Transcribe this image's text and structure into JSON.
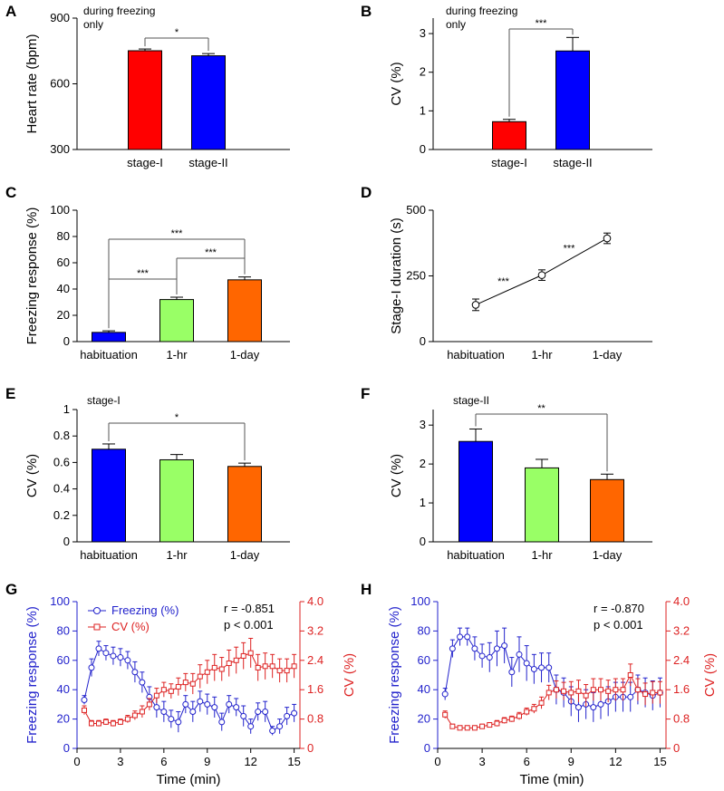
{
  "figure": {
    "panel_letters": [
      "A",
      "B",
      "C",
      "D",
      "E",
      "F",
      "G",
      "H"
    ]
  },
  "colors": {
    "red": "#ff0000",
    "blue": "#0000ff",
    "green": "#99ff66",
    "orange": "#ff6600",
    "axis": "#000000",
    "freezing_series": "#2222cc",
    "cv_series": "#dd2222"
  },
  "chart_data": [
    {
      "panel": "A",
      "type": "bar",
      "title": "",
      "annotation": "during freezing\nonly",
      "categories": [
        "stage-I",
        "stage-II"
      ],
      "values": [
        751,
        728
      ],
      "errors": [
        8,
        10
      ],
      "bar_colors": [
        "red",
        "blue"
      ],
      "xlabel": "",
      "ylabel": "Heart rate (bpm)",
      "ylim": [
        300,
        900
      ],
      "yticks": [
        300,
        600,
        900
      ],
      "significance": [
        {
          "from": 0,
          "to": 1,
          "label": "*"
        }
      ]
    },
    {
      "panel": "B",
      "type": "bar",
      "title": "",
      "annotation": "during freezing\nonly",
      "categories": [
        "stage-I",
        "stage-II"
      ],
      "values": [
        0.72,
        2.55
      ],
      "errors": [
        0.06,
        0.35
      ],
      "bar_colors": [
        "red",
        "blue"
      ],
      "xlabel": "",
      "ylabel": "CV (%)",
      "ylim": [
        0,
        3.4
      ],
      "yticks": [
        0,
        1,
        2,
        3
      ],
      "significance": [
        {
          "from": 0,
          "to": 1,
          "label": "***"
        }
      ]
    },
    {
      "panel": "C",
      "type": "bar",
      "title": "",
      "annotation": "",
      "categories": [
        "habituation",
        "1-hr",
        "1-day"
      ],
      "values": [
        7,
        32,
        47
      ],
      "errors": [
        1.2,
        1.8,
        2.2
      ],
      "bar_colors": [
        "blue",
        "green",
        "orange"
      ],
      "xlabel": "",
      "ylabel": "Freezing response (%)",
      "ylim": [
        0,
        100
      ],
      "yticks": [
        0,
        20,
        40,
        60,
        80,
        100
      ],
      "significance": [
        {
          "from": 0,
          "to": 1,
          "label": "***"
        },
        {
          "from": 1,
          "to": 2,
          "label": "***"
        },
        {
          "from": 0,
          "to": 2,
          "label": "***"
        }
      ]
    },
    {
      "panel": "D",
      "type": "line",
      "title": "",
      "annotation": "",
      "categories": [
        "habituation",
        "1-hr",
        "1-day"
      ],
      "values": [
        140,
        253,
        393
      ],
      "errors": [
        22,
        20,
        20
      ],
      "xlabel": "",
      "ylabel": "Stage-I duration (s)",
      "ylim": [
        0,
        500
      ],
      "yticks": [
        0,
        250,
        500
      ],
      "segment_labels": [
        "***",
        "***"
      ]
    },
    {
      "panel": "E",
      "type": "bar",
      "title": "",
      "annotation": "stage-I",
      "categories": [
        "habituation",
        "1-hr",
        "1-day"
      ],
      "values": [
        0.7,
        0.62,
        0.57
      ],
      "errors": [
        0.04,
        0.04,
        0.025
      ],
      "bar_colors": [
        "blue",
        "green",
        "orange"
      ],
      "xlabel": "",
      "ylabel": "CV (%)",
      "ylim": [
        0,
        1
      ],
      "yticks": [
        0,
        0.2,
        0.4,
        0.6,
        0.8,
        1
      ],
      "ytick_labels": [
        "0",
        "0.2",
        "0.4",
        "0.6",
        "0.8",
        "1"
      ],
      "significance": [
        {
          "from": 0,
          "to": 2,
          "label": "*"
        }
      ]
    },
    {
      "panel": "F",
      "type": "bar",
      "title": "",
      "annotation": "stage-II",
      "categories": [
        "habituation",
        "1-hr",
        "1-day"
      ],
      "values": [
        2.58,
        1.9,
        1.6
      ],
      "errors": [
        0.32,
        0.22,
        0.14
      ],
      "bar_colors": [
        "blue",
        "green",
        "orange"
      ],
      "xlabel": "",
      "ylabel": "CV (%)",
      "ylim": [
        0,
        3.4
      ],
      "yticks": [
        0,
        1,
        2,
        3
      ],
      "significance": [
        {
          "from": 0,
          "to": 2,
          "label": "**"
        }
      ]
    },
    {
      "panel": "G",
      "type": "line",
      "title": "",
      "xlabel": "Time (min)",
      "ylabel": "Freezing response (%)",
      "y2label": "CV (%)",
      "xlim": [
        0,
        15.4
      ],
      "xticks": [
        0,
        3,
        6,
        9,
        12,
        15
      ],
      "ylim": [
        0,
        100
      ],
      "yticks": [
        0,
        20,
        40,
        60,
        80,
        100
      ],
      "y2lim": [
        0,
        4
      ],
      "y2ticks": [
        "0",
        "0.8",
        "1.6",
        "2.4",
        "3.2",
        "4.0"
      ],
      "legend": [
        "Freezing (%)",
        "CV (%)"
      ],
      "stats": [
        "r = -0.851",
        "p < 0.001"
      ],
      "x": [
        0.5,
        1.0,
        1.5,
        2.0,
        2.5,
        3.0,
        3.5,
        4.0,
        4.5,
        5.0,
        5.5,
        6.0,
        6.5,
        7.0,
        7.5,
        8.0,
        8.5,
        9.0,
        9.5,
        10.0,
        10.5,
        11.0,
        11.5,
        12.0,
        12.5,
        13.0,
        13.5,
        14.0,
        14.5,
        15.0
      ],
      "series": [
        {
          "name": "Freezing (%)",
          "axis": "left",
          "marker": "circle",
          "values": [
            33,
            55,
            68,
            65,
            63,
            62,
            60,
            52,
            45,
            35,
            28,
            25,
            20,
            18,
            30,
            25,
            32,
            30,
            28,
            18,
            30,
            28,
            22,
            15,
            25,
            25,
            12,
            15,
            22,
            24
          ],
          "errors": [
            3,
            6,
            5,
            5,
            6,
            6,
            6,
            7,
            7,
            7,
            7,
            7,
            6,
            7,
            6,
            7,
            7,
            7,
            7,
            6,
            6,
            6,
            7,
            5,
            6,
            7,
            3,
            5,
            6,
            6
          ]
        },
        {
          "name": "CV (%)",
          "axis": "right",
          "marker": "square",
          "values": [
            1.04,
            0.68,
            0.68,
            0.72,
            0.68,
            0.72,
            0.8,
            0.9,
            1.0,
            1.2,
            1.44,
            1.6,
            1.56,
            1.68,
            1.8,
            1.76,
            1.96,
            2.08,
            2.2,
            2.16,
            2.32,
            2.4,
            2.52,
            2.6,
            2.2,
            2.24,
            2.24,
            2.12,
            2.12,
            2.24
          ],
          "errors": [
            0.12,
            0.08,
            0.08,
            0.08,
            0.08,
            0.08,
            0.1,
            0.12,
            0.16,
            0.16,
            0.2,
            0.2,
            0.2,
            0.24,
            0.24,
            0.28,
            0.32,
            0.32,
            0.36,
            0.32,
            0.36,
            0.36,
            0.36,
            0.4,
            0.36,
            0.36,
            0.32,
            0.32,
            0.32,
            0.32
          ]
        }
      ]
    },
    {
      "panel": "H",
      "type": "line",
      "title": "",
      "xlabel": "Time (min)",
      "ylabel": "Freezing response (%)",
      "y2label": "CV (%)",
      "xlim": [
        0,
        15.4
      ],
      "xticks": [
        0,
        3,
        6,
        9,
        12,
        15
      ],
      "ylim": [
        0,
        100
      ],
      "yticks": [
        0,
        20,
        40,
        60,
        80,
        100
      ],
      "y2lim": [
        0,
        4
      ],
      "y2ticks": [
        "0",
        "0.8",
        "1.6",
        "2.4",
        "3.2",
        "4.0"
      ],
      "legend": [],
      "stats": [
        "r = -0.870",
        "p < 0.001"
      ],
      "x": [
        0.5,
        1.0,
        1.5,
        2.0,
        2.5,
        3.0,
        3.5,
        4.0,
        4.5,
        5.0,
        5.5,
        6.0,
        6.5,
        7.0,
        7.5,
        8.0,
        8.5,
        9.0,
        9.5,
        10.0,
        10.5,
        11.0,
        11.5,
        12.0,
        12.5,
        13.0,
        13.5,
        14.0,
        14.5,
        15.0
      ],
      "series": [
        {
          "name": "Freezing (%)",
          "axis": "left",
          "marker": "circle",
          "values": [
            37,
            68,
            76,
            76,
            68,
            63,
            62,
            68,
            70,
            52,
            64,
            58,
            54,
            55,
            55,
            40,
            38,
            32,
            28,
            30,
            28,
            30,
            32,
            35,
            35,
            35,
            40,
            38,
            36,
            38
          ],
          "errors": [
            4,
            6,
            6,
            6,
            8,
            8,
            10,
            12,
            12,
            10,
            12,
            12,
            10,
            10,
            10,
            10,
            10,
            10,
            10,
            10,
            10,
            10,
            10,
            10,
            10,
            10,
            10,
            10,
            10,
            10
          ]
        },
        {
          "name": "CV (%)",
          "axis": "right",
          "marker": "square",
          "values": [
            0.92,
            0.6,
            0.56,
            0.56,
            0.56,
            0.6,
            0.64,
            0.68,
            0.76,
            0.8,
            0.88,
            1.0,
            1.08,
            1.24,
            1.52,
            1.6,
            1.56,
            1.52,
            1.56,
            1.44,
            1.6,
            1.6,
            1.56,
            1.6,
            1.6,
            2.0,
            1.6,
            1.48,
            1.52,
            1.52
          ],
          "errors": [
            0.1,
            0.06,
            0.06,
            0.06,
            0.06,
            0.06,
            0.06,
            0.08,
            0.08,
            0.08,
            0.1,
            0.1,
            0.12,
            0.16,
            0.2,
            0.24,
            0.24,
            0.3,
            0.3,
            0.3,
            0.3,
            0.3,
            0.3,
            0.3,
            0.3,
            0.3,
            0.3,
            0.3,
            0.3,
            0.3
          ]
        }
      ]
    }
  ]
}
